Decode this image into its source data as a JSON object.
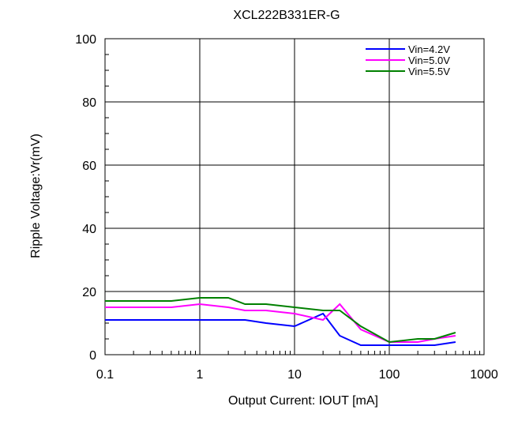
{
  "chart_data": {
    "type": "line",
    "title": "XCL222B331ER-G",
    "xlabel": "Output  Current: IOUT [mA]",
    "ylabel": "Ripple Voltage:Vr(mV)",
    "x_scale": "log",
    "xlim": [
      0.1,
      1000
    ],
    "ylim": [
      0,
      100
    ],
    "x_ticks": [
      "0.1",
      "1",
      "10",
      "100",
      "1000"
    ],
    "y_ticks": [
      "0",
      "20",
      "40",
      "60",
      "80",
      "100"
    ],
    "grid": true,
    "legend_position": "top-right",
    "series": [
      {
        "name": "Vin=4.2V",
        "color": "#0000ff",
        "x": [
          0.1,
          0.5,
          1,
          3,
          5,
          10,
          20,
          30,
          50,
          100,
          200,
          300,
          500
        ],
        "y": [
          11,
          11,
          11,
          11,
          10,
          9,
          13,
          6,
          3,
          3,
          3,
          3,
          4
        ]
      },
      {
        "name": "Vin=5.0V",
        "color": "#ff00ff",
        "x": [
          0.1,
          0.5,
          1,
          2,
          3,
          5,
          10,
          20,
          30,
          50,
          100,
          200,
          300,
          500
        ],
        "y": [
          15,
          15,
          16,
          15,
          14,
          14,
          13,
          11,
          16,
          8,
          4,
          4,
          5,
          6
        ]
      },
      {
        "name": "Vin=5.5V",
        "color": "#008000",
        "x": [
          0.1,
          0.5,
          1,
          2,
          3,
          5,
          10,
          20,
          30,
          50,
          100,
          200,
          300,
          500
        ],
        "y": [
          17,
          17,
          18,
          18,
          16,
          16,
          15,
          14,
          14,
          9,
          4,
          5,
          5,
          7
        ]
      }
    ]
  }
}
